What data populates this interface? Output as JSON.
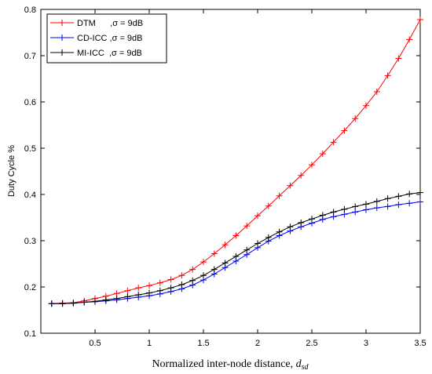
{
  "chart_data": {
    "type": "line",
    "title": "",
    "xlabel": "Normalized inter-node distance, ",
    "xlabel_symbol": "d",
    "xlabel_subscript": "sd",
    "ylabel": "Duty Cycle %",
    "xlim": [
      0,
      3.5
    ],
    "ylim": [
      0.1,
      0.8
    ],
    "xticks": [
      0.5,
      1,
      1.5,
      2,
      2.5,
      3,
      3.5
    ],
    "xtick_labels": [
      "0.5",
      "1",
      "1.5",
      "2",
      "2.5",
      "3",
      "3.5"
    ],
    "yticks": [
      0.1,
      0.2,
      0.3,
      0.4,
      0.5,
      0.6,
      0.7,
      0.8
    ],
    "ytick_labels": [
      "0.1",
      "0.2",
      "0.3",
      "0.4",
      "0.5",
      "0.6",
      "0.7",
      "0.8"
    ],
    "grid": false,
    "legend_position": "top-left",
    "x": [
      0.1,
      0.2,
      0.3,
      0.4,
      0.5,
      0.6,
      0.7,
      0.8,
      0.9,
      1.0,
      1.1,
      1.2,
      1.3,
      1.4,
      1.5,
      1.6,
      1.7,
      1.8,
      1.9,
      2.0,
      2.1,
      2.2,
      2.3,
      2.4,
      2.5,
      2.6,
      2.7,
      2.8,
      2.9,
      3.0,
      3.1,
      3.2,
      3.3,
      3.4,
      3.5
    ],
    "series": [
      {
        "name": "DTM      ,σ = 9dB",
        "color": "#ff0000",
        "values": [
          0.164,
          0.165,
          0.166,
          0.17,
          0.175,
          0.18,
          0.186,
          0.192,
          0.198,
          0.203,
          0.209,
          0.216,
          0.225,
          0.238,
          0.254,
          0.272,
          0.291,
          0.311,
          0.332,
          0.354,
          0.375,
          0.397,
          0.419,
          0.441,
          0.464,
          0.488,
          0.513,
          0.538,
          0.564,
          0.592,
          0.622,
          0.657,
          0.694,
          0.735,
          0.778
        ]
      },
      {
        "name": "CD-ICC ,σ = 9dB",
        "color": "#0000ff",
        "values": [
          0.164,
          0.164,
          0.165,
          0.167,
          0.168,
          0.17,
          0.172,
          0.175,
          0.178,
          0.181,
          0.185,
          0.19,
          0.196,
          0.204,
          0.215,
          0.228,
          0.242,
          0.256,
          0.27,
          0.285,
          0.299,
          0.311,
          0.321,
          0.33,
          0.338,
          0.346,
          0.352,
          0.357,
          0.362,
          0.367,
          0.371,
          0.374,
          0.378,
          0.381,
          0.384
        ]
      },
      {
        "name": "MI-ICC  ,σ = 9dB",
        "color": "#000000",
        "values": [
          0.164,
          0.164,
          0.165,
          0.167,
          0.169,
          0.172,
          0.175,
          0.179,
          0.183,
          0.187,
          0.192,
          0.198,
          0.205,
          0.214,
          0.225,
          0.238,
          0.252,
          0.266,
          0.28,
          0.294,
          0.307,
          0.319,
          0.33,
          0.339,
          0.347,
          0.355,
          0.362,
          0.368,
          0.374,
          0.379,
          0.385,
          0.391,
          0.396,
          0.401,
          0.404
        ]
      }
    ]
  }
}
